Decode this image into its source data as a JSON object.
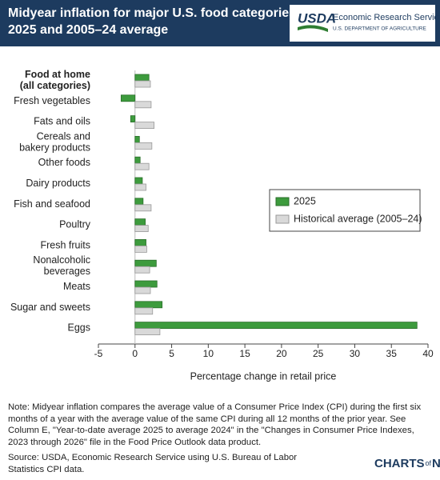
{
  "header": {
    "agency": "Economic Research Service",
    "department": "U.S. DEPARTMENT OF AGRICULTURE",
    "logo": "USDA"
  },
  "chart_data": {
    "type": "bar",
    "orientation": "horizontal",
    "title": [
      "Midyear inflation for major U.S. food categories,",
      "2025 and 2005–24 average"
    ],
    "categories": [
      [
        "Food at home",
        "(all categories)"
      ],
      [
        "Fresh vegetables"
      ],
      [
        "Fats and oils"
      ],
      [
        "Cereals and",
        "bakery products"
      ],
      [
        "Other foods"
      ],
      [
        "Dairy products"
      ],
      [
        "Fish and seafood"
      ],
      [
        "Poultry"
      ],
      [
        "Fresh fruits"
      ],
      [
        "Nonalcoholic",
        "beverages"
      ],
      [
        "Meats"
      ],
      [
        "Sugar and sweets"
      ],
      [
        "Eggs"
      ]
    ],
    "series": [
      {
        "name": "2025",
        "color": "#3d9b3d",
        "values": [
          1.9,
          -1.9,
          -0.6,
          0.6,
          0.7,
          1.0,
          1.1,
          1.4,
          1.5,
          2.9,
          3.0,
          3.7,
          38.5
        ]
      },
      {
        "name": "Historical average (2005–24)",
        "color": "#d9d9d9",
        "values": [
          2.1,
          2.2,
          2.6,
          2.3,
          1.9,
          1.5,
          2.2,
          1.8,
          1.6,
          2.0,
          2.1,
          2.4,
          3.4
        ]
      }
    ],
    "xlabel": "Percentage change in retail price",
    "xlim": [
      -5,
      40
    ],
    "xticks": [
      -5,
      0,
      5,
      10,
      15,
      20,
      25,
      30,
      35,
      40
    ],
    "legend": "center right",
    "bold_first_category": true
  },
  "note": "Note: Midyear inflation compares the average value of a Consumer Price Index (CPI) during the first six months of a year with the average value of the same CPI during all 12 months of the prior year. See Column E, \"Year-to-date average 2025 to average 2024\" in the \"Changes in Consumer Price Indexes, 2023 through 2026\" file in the Food Price Outlook data product.",
  "source": "Source: USDA, Economic Research Service using U.S. Bureau of Labor Statistics CPI data.",
  "brand": [
    "CHARTS",
    "of",
    "NOTE"
  ]
}
